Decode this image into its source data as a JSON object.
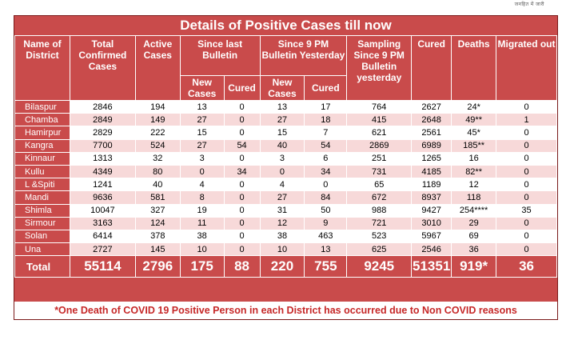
{
  "top_note": "जनहित में जारी",
  "title": "Details of Positive Cases till now",
  "headers": {
    "district": "Name of District",
    "total_confirmed": "Total Confirmed Cases",
    "active": "Active Cases",
    "since_last": "Since last Bulletin",
    "since_9pm": "Since 9 PM Bulletin Yesterday",
    "sampling": "Sampling Since 9 PM Bulletin yesterday",
    "cured": "Cured",
    "deaths": "Deaths",
    "migrated": "Migrated out",
    "new_cases": "New Cases",
    "sub_cured": "Cured"
  },
  "rows": [
    {
      "district": "Bilaspur",
      "total": "2846",
      "active": "194",
      "last_new": "13",
      "last_cured": "0",
      "nine_new": "13",
      "nine_cured": "17",
      "sampling": "764",
      "cured": "2627",
      "deaths": "24*",
      "migrated": "0"
    },
    {
      "district": "Chamba",
      "total": "2849",
      "active": "149",
      "last_new": "27",
      "last_cured": "0",
      "nine_new": "27",
      "nine_cured": "18",
      "sampling": "415",
      "cured": "2648",
      "deaths": "49**",
      "migrated": "1"
    },
    {
      "district": "Hamirpur",
      "total": "2829",
      "active": "222",
      "last_new": "15",
      "last_cured": "0",
      "nine_new": "15",
      "nine_cured": "7",
      "sampling": "621",
      "cured": "2561",
      "deaths": "45*",
      "migrated": "0"
    },
    {
      "district": "Kangra",
      "total": "7700",
      "active": "524",
      "last_new": "27",
      "last_cured": "54",
      "nine_new": "40",
      "nine_cured": "54",
      "sampling": "2869",
      "cured": "6989",
      "deaths": "185**",
      "migrated": "0"
    },
    {
      "district": "Kinnaur",
      "total": "1313",
      "active": "32",
      "last_new": "3",
      "last_cured": "0",
      "nine_new": "3",
      "nine_cured": "6",
      "sampling": "251",
      "cured": "1265",
      "deaths": "16",
      "migrated": "0"
    },
    {
      "district": "Kullu",
      "total": "4349",
      "active": "80",
      "last_new": "0",
      "last_cured": "34",
      "nine_new": "0",
      "nine_cured": "34",
      "sampling": "731",
      "cured": "4185",
      "deaths": "82**",
      "migrated": "0"
    },
    {
      "district": "L &Spiti",
      "total": "1241",
      "active": "40",
      "last_new": "4",
      "last_cured": "0",
      "nine_new": "4",
      "nine_cured": "0",
      "sampling": "65",
      "cured": "1189",
      "deaths": "12",
      "migrated": "0"
    },
    {
      "district": "Mandi",
      "total": "9636",
      "active": "581",
      "last_new": "8",
      "last_cured": "0",
      "nine_new": "27",
      "nine_cured": "84",
      "sampling": "672",
      "cured": "8937",
      "deaths": "118",
      "migrated": "0"
    },
    {
      "district": "Shimla",
      "total": "10047",
      "active": "327",
      "last_new": "19",
      "last_cured": "0",
      "nine_new": "31",
      "nine_cured": "50",
      "sampling": "988",
      "cured": "9427",
      "deaths": "254****",
      "migrated": "35"
    },
    {
      "district": "Sirmour",
      "total": "3163",
      "active": "124",
      "last_new": "11",
      "last_cured": "0",
      "nine_new": "12",
      "nine_cured": "9",
      "sampling": "721",
      "cured": "3010",
      "deaths": "29",
      "migrated": "0"
    },
    {
      "district": "Solan",
      "total": "6414",
      "active": "378",
      "last_new": "38",
      "last_cured": "0",
      "nine_new": "38",
      "nine_cured": "463",
      "sampling": "523",
      "cured": "5967",
      "deaths": "69",
      "migrated": "0"
    },
    {
      "district": "Una",
      "total": "2727",
      "active": "145",
      "last_new": "10",
      "last_cured": "0",
      "nine_new": "10",
      "nine_cured": "13",
      "sampling": "625",
      "cured": "2546",
      "deaths": "36",
      "migrated": "0"
    }
  ],
  "totals": {
    "label": "Total",
    "total": "55114",
    "active": "2796",
    "last_new": "175",
    "last_cured": "88",
    "nine_new": "220",
    "nine_cured": "755",
    "sampling": "9245",
    "cured": "51351",
    "deaths": "919*",
    "migrated": "36"
  },
  "footnote": "*One Death of COVID 19 Positive Person in each District has occurred due to Non COVID reasons"
}
